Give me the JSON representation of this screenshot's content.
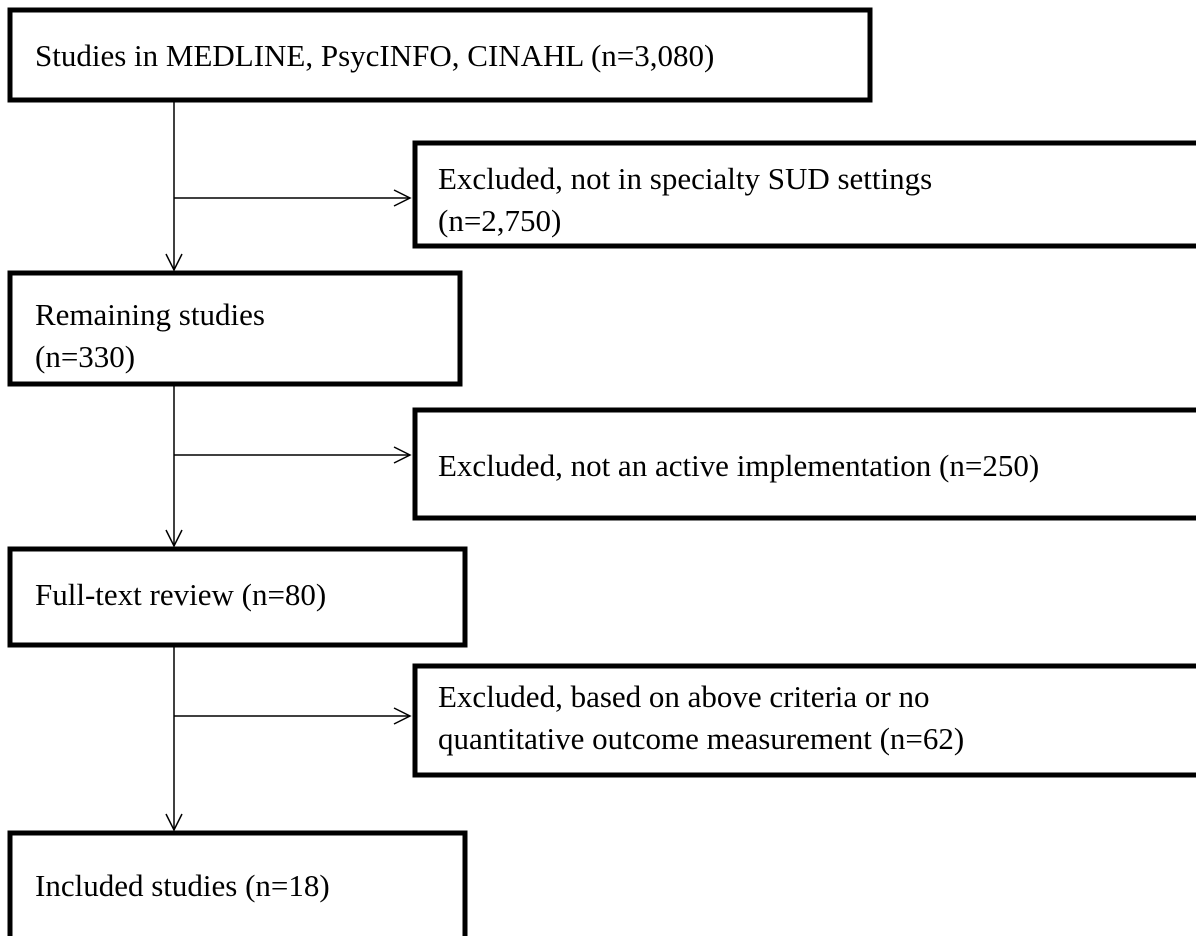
{
  "nodes": [
    {
      "lines": [
        "Studies in MEDLINE, PsycINFO, CINAHL (n=3,080)"
      ]
    },
    {
      "lines": [
        "Excluded, not in specialty SUD settings",
        "(n=2,750)"
      ]
    },
    {
      "lines": [
        "Remaining studies",
        "(n=330)"
      ]
    },
    {
      "lines": [
        "Excluded, not an active implementation (n=250)"
      ]
    },
    {
      "lines": [
        "Full-text review (n=80)"
      ]
    },
    {
      "lines": [
        "Excluded, based on above criteria or no",
        "quantitative outcome measurement (n=62)"
      ]
    },
    {
      "lines": [
        "Included studies (n=18)"
      ]
    }
  ]
}
